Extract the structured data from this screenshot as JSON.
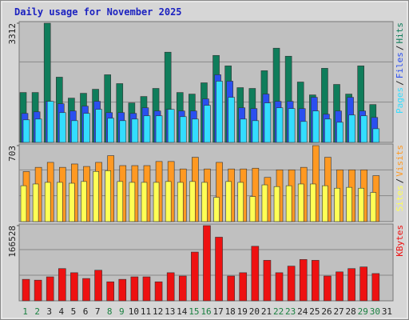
{
  "chart_data": [
    {
      "type": "bar",
      "title": "Daily usage for November 2025",
      "ylim": [
        0,
        3312
      ],
      "yticks": [
        3312
      ],
      "legend_separator": "/",
      "series": [
        {
          "name": "Hits",
          "color": "#0f7d5b",
          "values": [
            1387,
            1387,
            3312,
            1813,
            1231,
            1365,
            1477,
            1880,
            1634,
            1097,
            1276,
            1500,
            2507,
            1387,
            1343,
            1656,
            2417,
            2126,
            1522,
            1500,
            1992,
            2618,
            2395,
            1678,
            1320,
            2059,
            1611,
            1343,
            2126,
            1052,
            null
          ]
        },
        {
          "name": "Files",
          "color": "#2a4ff0",
          "values": [
            806,
            850,
            1141,
            1074,
            873,
            1007,
            1141,
            828,
            828,
            806,
            962,
            873,
            918,
            873,
            873,
            1209,
            1880,
            1701,
            962,
            940,
            1343,
            1141,
            1141,
            940,
            1253,
            783,
            873,
            1253,
            873,
            694,
            null
          ]
        },
        {
          "name": "Pages",
          "color": "#33ddff",
          "values": [
            627,
            649,
            1141,
            828,
            604,
            806,
            918,
            671,
            604,
            649,
            739,
            739,
            918,
            716,
            649,
            1029,
            1701,
            1253,
            649,
            604,
            1097,
            962,
            940,
            582,
            873,
            649,
            560,
            761,
            739,
            380,
            null
          ]
        }
      ]
    },
    {
      "type": "bar",
      "ylim": [
        0,
        703
      ],
      "yticks": [
        703
      ],
      "legend_separator": "/",
      "series": [
        {
          "name": "Visits",
          "color": "#ff9922",
          "values": [
            463,
            502,
            548,
            502,
            533,
            510,
            548,
            610,
            518,
            518,
            518,
            556,
            556,
            487,
            595,
            487,
            548,
            487,
            487,
            494,
            409,
            479,
            479,
            502,
            703,
            595,
            479,
            479,
            479,
            425,
            null
          ]
        },
        {
          "name": "Sites",
          "color": "#ffff55",
          "values": [
            332,
            348,
            363,
            363,
            355,
            371,
            464,
            471,
            371,
            363,
            363,
            363,
            371,
            363,
            371,
            363,
            224,
            371,
            363,
            232,
            340,
            324,
            332,
            348,
            348,
            332,
            309,
            317,
            309,
            270,
            null
          ]
        }
      ]
    },
    {
      "type": "bar",
      "ylim": [
        0,
        166528
      ],
      "yticks": [
        166528
      ],
      "series": [
        {
          "name": "KBytes",
          "color": "#ee1111",
          "values": [
            47580,
            45750,
            53070,
            71370,
            62220,
            49410,
            67710,
            42090,
            47580,
            53070,
            53070,
            42090,
            62220,
            54900,
            107970,
            166528,
            140910,
            54900,
            62220,
            120780,
            89670,
            62220,
            76860,
            91500,
            89670,
            54900,
            64050,
            71370,
            75030,
            60390,
            null
          ]
        }
      ],
      "categories": [
        "1",
        "2",
        "3",
        "4",
        "5",
        "6",
        "7",
        "8",
        "9",
        "10",
        "11",
        "12",
        "13",
        "14",
        "15",
        "16",
        "17",
        "18",
        "19",
        "20",
        "21",
        "22",
        "23",
        "24",
        "25",
        "26",
        "27",
        "28",
        "29",
        "30",
        "31"
      ],
      "category_colors": [
        "#1a8040",
        "#1a8040",
        "#222222",
        "#222222",
        "#222222",
        "#222222",
        "#222222",
        "#1a8040",
        "#1a8040",
        "#222222",
        "#222222",
        "#222222",
        "#222222",
        "#222222",
        "#1a8040",
        "#1a8040",
        "#222222",
        "#222222",
        "#222222",
        "#222222",
        "#222222",
        "#1a8040",
        "#1a8040",
        "#222222",
        "#222222",
        "#222222",
        "#222222",
        "#222222",
        "#1a8040",
        "#1a8040",
        "#222222"
      ]
    }
  ]
}
